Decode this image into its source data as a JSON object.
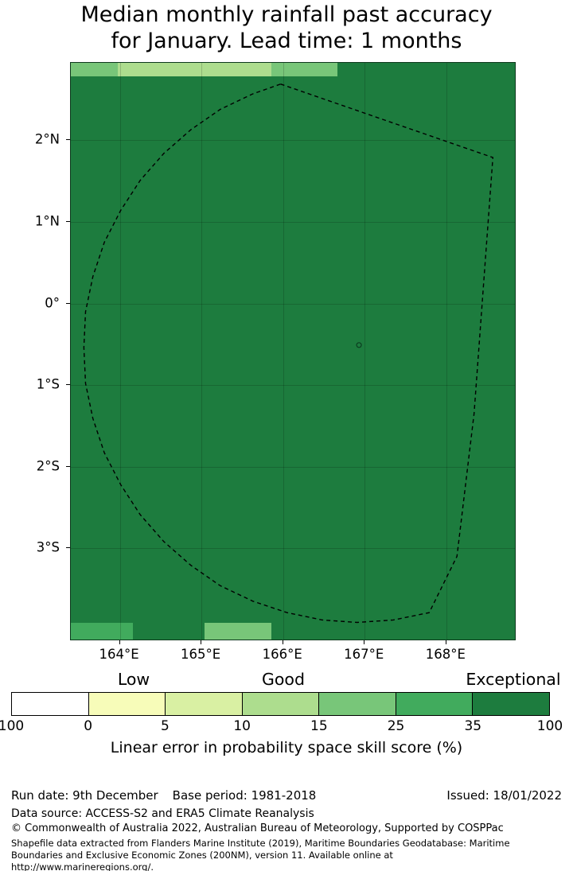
{
  "title": "Median monthly rainfall past accuracy\nfor January. Lead time: 1 months",
  "chart_data": {
    "type": "heatmap",
    "title": "Median monthly rainfall past accuracy for January. Lead time: 1 months",
    "grid": true,
    "lon_range": [
      163.4,
      168.84
    ],
    "lat_range": [
      -4.12,
      2.95
    ],
    "lon_ticks": [
      {
        "value": 164,
        "label": "164°E"
      },
      {
        "value": 165,
        "label": "165°E"
      },
      {
        "value": 166,
        "label": "166°E"
      },
      {
        "value": 167,
        "label": "167°E"
      },
      {
        "value": 168,
        "label": "168°E"
      }
    ],
    "lat_ticks": [
      {
        "value": 2,
        "label": "2°N"
      },
      {
        "value": 1,
        "label": "1°N"
      },
      {
        "value": 0,
        "label": "0°"
      },
      {
        "value": -1,
        "label": "1°S"
      },
      {
        "value": -2,
        "label": "2°S"
      },
      {
        "value": -3,
        "label": "3°S"
      }
    ],
    "background_color": "#1d7c3e",
    "background_bin": "35-100",
    "cells": [
      {
        "lon": [
          163.4,
          163.98
        ],
        "lat": [
          2.78,
          2.95
        ],
        "color": "#78c679",
        "bin": "15-25"
      },
      {
        "lon": [
          163.98,
          165.86
        ],
        "lat": [
          2.78,
          2.95
        ],
        "color": "#addd8e",
        "bin": "10-15"
      },
      {
        "lon": [
          165.86,
          166.67
        ],
        "lat": [
          2.78,
          2.95
        ],
        "color": "#78c679",
        "bin": "15-25"
      },
      {
        "lon": [
          163.4,
          164.16
        ],
        "lat": [
          -4.12,
          -3.92
        ],
        "color": "#41ab5d",
        "bin": "25-35"
      },
      {
        "lon": [
          165.04,
          165.86
        ],
        "lat": [
          -4.12,
          -3.92
        ],
        "color": "#78c679",
        "bin": "15-25"
      }
    ],
    "island_marker": {
      "lon": 166.93,
      "lat": -0.51
    },
    "eez_boundary_lonlat": [
      [
        165.97,
        2.69
      ],
      [
        168.57,
        1.79
      ],
      [
        168.34,
        -1.35
      ],
      [
        168.13,
        -3.1
      ],
      [
        167.79,
        -3.79
      ],
      [
        167.35,
        -3.88
      ],
      [
        166.91,
        -3.91
      ],
      [
        166.48,
        -3.88
      ],
      [
        166.05,
        -3.79
      ],
      [
        165.63,
        -3.65
      ],
      [
        165.23,
        -3.46
      ],
      [
        164.87,
        -3.21
      ],
      [
        164.54,
        -2.92
      ],
      [
        164.25,
        -2.59
      ],
      [
        164.01,
        -2.22
      ],
      [
        163.81,
        -1.83
      ],
      [
        163.67,
        -1.41
      ],
      [
        163.58,
        -0.98
      ],
      [
        163.56,
        -0.54
      ],
      [
        163.58,
        -0.1
      ],
      [
        163.67,
        0.33
      ],
      [
        163.81,
        0.75
      ],
      [
        164.01,
        1.14
      ],
      [
        164.25,
        1.51
      ],
      [
        164.54,
        1.84
      ],
      [
        164.87,
        2.13
      ],
      [
        165.23,
        2.38
      ],
      [
        165.63,
        2.57
      ]
    ],
    "colorbar": {
      "label": "Linear error in probability space skill score (%)",
      "qualitative_labels": [
        "Low",
        "Good",
        "Exceptional"
      ],
      "tick_labels": [
        "100",
        "0",
        "5",
        "10",
        "15",
        "25",
        "35",
        "100"
      ],
      "colors": [
        "#ffffff",
        "#f7fcb9",
        "#d9f0a3",
        "#addd8e",
        "#78c679",
        "#41ab5d",
        "#1d7c3e"
      ],
      "legend_position": "bottom"
    }
  },
  "footer": {
    "run_date": "Run date: 9th December",
    "base_period": "Base period: 1981-2018",
    "issued": "Issued: 18/01/2022",
    "data_source": "Data source: ACCESS-S2 and ERA5 Climate Reanalysis",
    "copyright": "© Commonwealth of Australia 2022, Australian Bureau of Meteorology, Supported by COSPPac",
    "shapefile_note": "Shapefile data extracted from Flanders Marine Institute (2019), Maritime Boundaries Geodatabase: Maritime Boundaries and Exclusive Economic Zones (200NM), version 11. Available online at http://www.marineregions.org/."
  }
}
